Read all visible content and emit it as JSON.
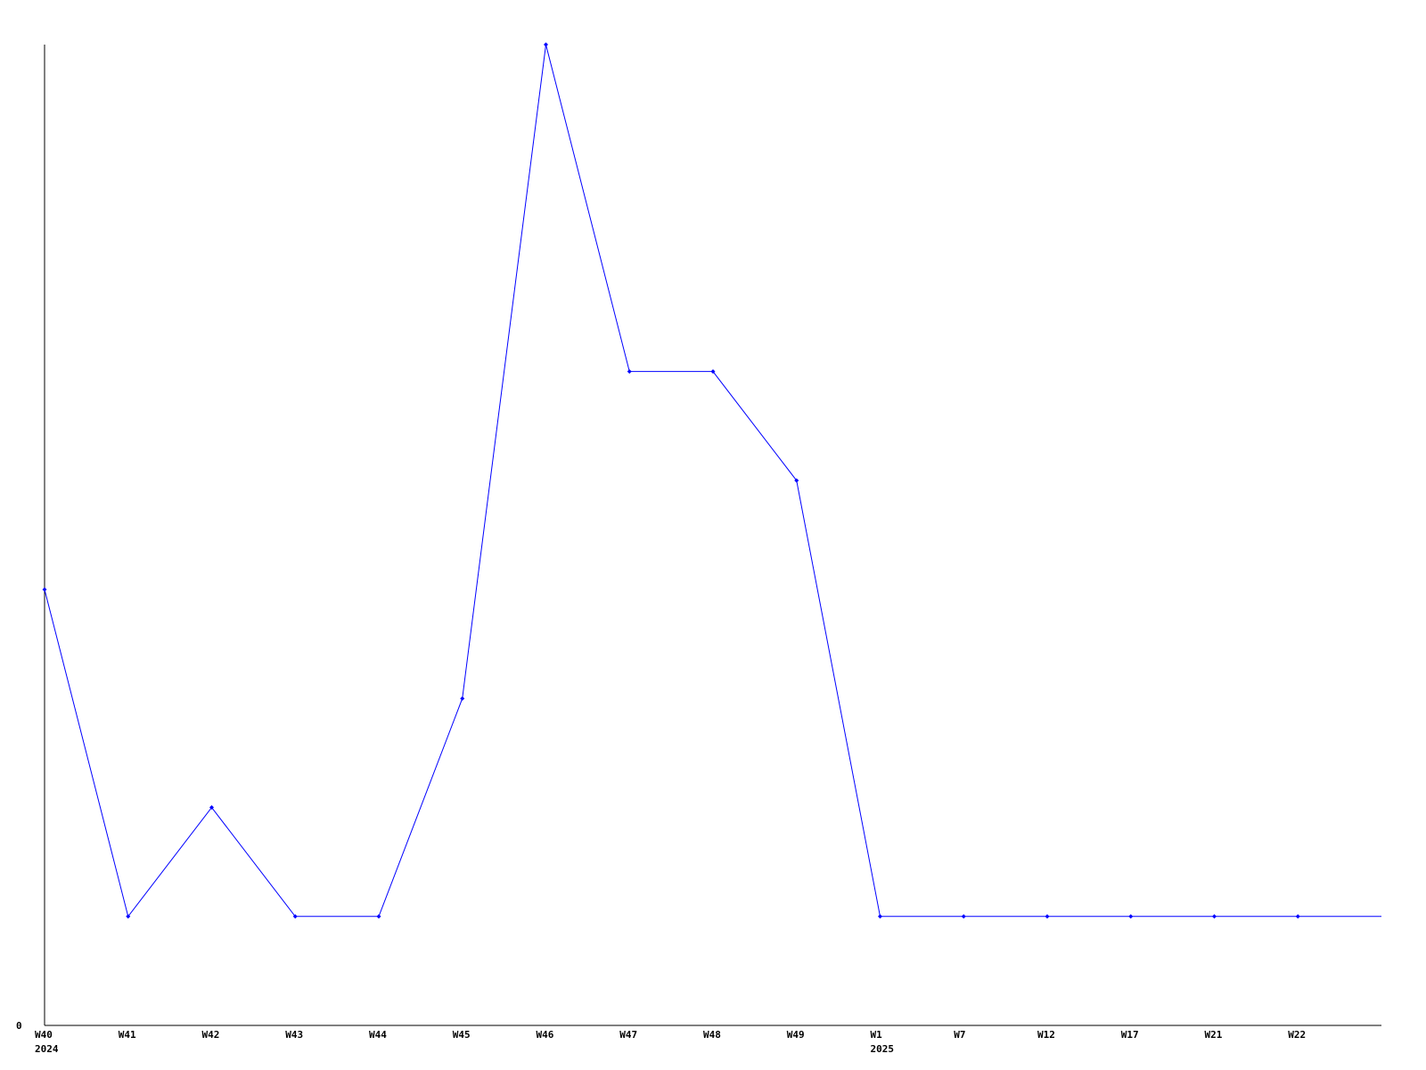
{
  "chart_data": {
    "type": "line",
    "title": "",
    "xlabel": "",
    "ylabel": "",
    "categories": [
      "W40",
      "W41",
      "W42",
      "W43",
      "W44",
      "W45",
      "W46",
      "W47",
      "W48",
      "W49",
      "W1",
      "W7",
      "W12",
      "W17",
      "W21",
      "W22"
    ],
    "year_labels": {
      "W40": "2024",
      "W1": "2025"
    },
    "series": [
      {
        "values": [
          4,
          1,
          2,
          1,
          1,
          3,
          9,
          6,
          6,
          5,
          1,
          1,
          1,
          1,
          1,
          1
        ],
        "color": "#0000ff"
      }
    ],
    "y_tick_labels": [
      "0"
    ],
    "ylim": [
      0,
      9
    ],
    "grid": false,
    "legend": "none",
    "axis_color": "#000000"
  }
}
